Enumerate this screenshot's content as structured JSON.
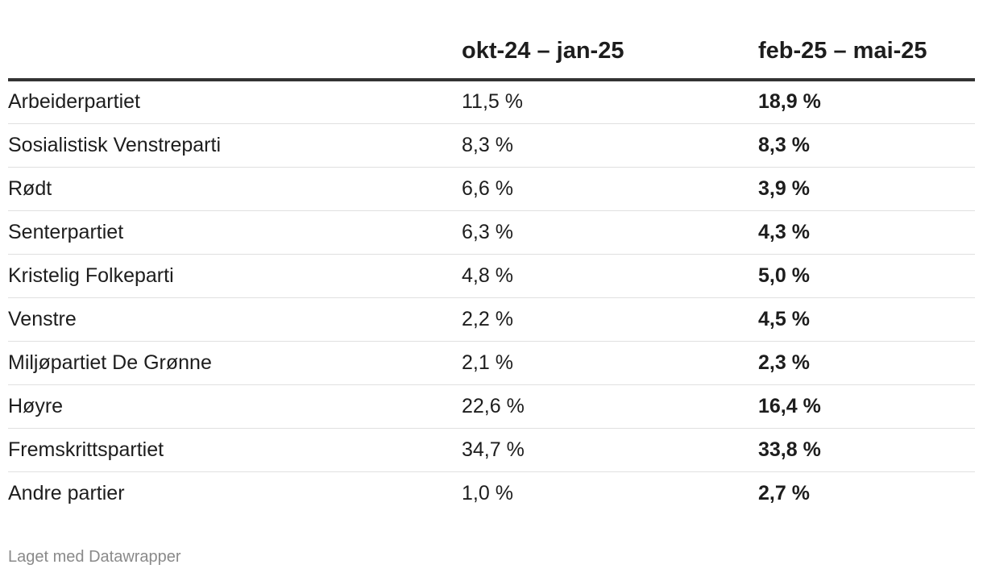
{
  "chart_data": {
    "type": "table",
    "columns": [
      "",
      "okt-24 – jan-25",
      "feb-25 – mai-25"
    ],
    "rows": [
      {
        "party": "Arbeiderpartiet",
        "p1": "11,5 %",
        "p2": "18,9 %"
      },
      {
        "party": "Sosialistisk Venstreparti",
        "p1": "8,3 %",
        "p2": "8,3 %"
      },
      {
        "party": "Rødt",
        "p1": "6,6 %",
        "p2": "3,9 %"
      },
      {
        "party": "Senterpartiet",
        "p1": "6,3 %",
        "p2": "4,3 %"
      },
      {
        "party": "Kristelig Folkeparti",
        "p1": "4,8 %",
        "p2": "5,0 %"
      },
      {
        "party": "Venstre",
        "p1": "2,2 %",
        "p2": "4,5 %"
      },
      {
        "party": "Miljøpartiet De Grønne",
        "p1": "2,1 %",
        "p2": "2,3 %"
      },
      {
        "party": "Høyre",
        "p1": "22,6 %",
        "p2": "16,4 %"
      },
      {
        "party": "Fremskrittspartiet",
        "p1": "34,7 %",
        "p2": "33,8 %"
      },
      {
        "party": "Andre partier",
        "p1": "1,0 %",
        "p2": "2,7 %"
      }
    ]
  },
  "footer": {
    "credit": "Laget med Datawrapper"
  }
}
